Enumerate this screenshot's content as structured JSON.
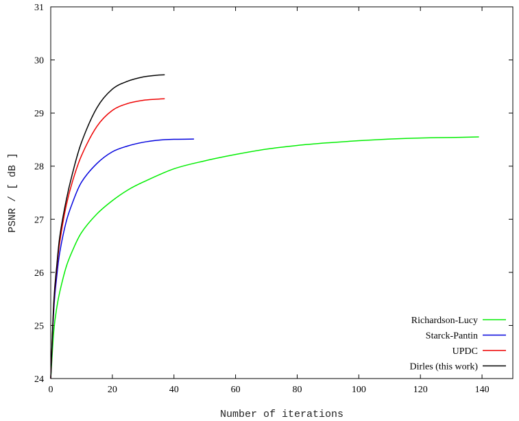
{
  "chart_data": {
    "type": "line",
    "xlabel": "Number of iterations",
    "ylabel": "PSNR / [ dB ]",
    "xlim": [
      0,
      150
    ],
    "ylim": [
      24,
      31
    ],
    "xticks": [
      0,
      20,
      40,
      60,
      80,
      100,
      120,
      140
    ],
    "yticks": [
      24,
      25,
      26,
      27,
      28,
      29,
      30,
      31
    ],
    "grid": false,
    "legend_position": "bottom-right",
    "series": [
      {
        "name": "Richardson-Lucy",
        "color": "#00ee00",
        "x": [
          0,
          1,
          2,
          3,
          5,
          7,
          10,
          15,
          20,
          25,
          30,
          40,
          50,
          60,
          70,
          80,
          90,
          100,
          110,
          120,
          130,
          139
        ],
        "y": [
          24.0,
          24.9,
          25.35,
          25.65,
          26.1,
          26.4,
          26.75,
          27.1,
          27.35,
          27.55,
          27.7,
          27.95,
          28.1,
          28.22,
          28.32,
          28.39,
          28.44,
          28.48,
          28.51,
          28.53,
          28.54,
          28.55
        ]
      },
      {
        "name": "Starck-Pantin",
        "color": "#0000dd",
        "x": [
          0,
          1,
          2,
          3,
          5,
          7,
          10,
          15,
          20,
          25,
          30,
          35,
          40,
          46.5
        ],
        "y": [
          24.0,
          25.3,
          25.95,
          26.4,
          26.95,
          27.3,
          27.7,
          28.05,
          28.27,
          28.38,
          28.45,
          28.49,
          28.505,
          28.51
        ]
      },
      {
        "name": "UPDC",
        "color": "#ee0000",
        "x": [
          0,
          1,
          2,
          3,
          5,
          7,
          10,
          15,
          20,
          25,
          30,
          34,
          37
        ],
        "y": [
          24.0,
          25.4,
          26.1,
          26.6,
          27.25,
          27.7,
          28.2,
          28.75,
          29.05,
          29.18,
          29.24,
          29.26,
          29.27
        ]
      },
      {
        "name": "Dirles (this work)",
        "color": "#000000",
        "x": [
          0,
          1,
          2,
          3,
          5,
          7,
          10,
          15,
          20,
          25,
          30,
          34,
          37
        ],
        "y": [
          24.0,
          25.45,
          26.15,
          26.7,
          27.35,
          27.85,
          28.45,
          29.1,
          29.45,
          29.6,
          29.68,
          29.71,
          29.72
        ]
      }
    ]
  }
}
